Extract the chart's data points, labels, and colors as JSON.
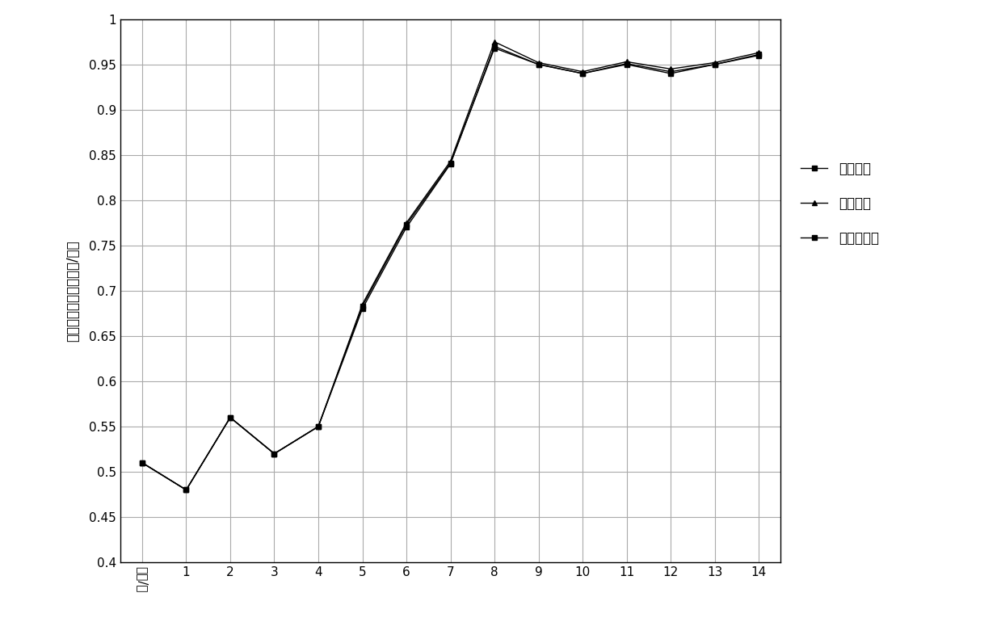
{
  "x_labels": [
    "时间/天",
    "1",
    "2",
    "3",
    "4",
    "5",
    "6",
    "7",
    "8",
    "9",
    "10",
    "11",
    "12",
    "13",
    "14"
  ],
  "x_values": [
    0,
    1,
    2,
    3,
    4,
    5,
    6,
    7,
    8,
    9,
    10,
    11,
    12,
    13,
    14
  ],
  "series": [
    {
      "name": "实施例四",
      "marker": "s",
      "values": [
        0.51,
        0.48,
        0.56,
        0.52,
        0.55,
        0.68,
        0.77,
        0.84,
        0.97,
        0.95,
        0.94,
        0.95,
        0.94,
        0.95,
        0.96
      ]
    },
    {
      "name": "实施例八",
      "marker": "^",
      "values": [
        0.51,
        0.48,
        0.56,
        0.52,
        0.55,
        0.685,
        0.775,
        0.843,
        0.975,
        0.952,
        0.942,
        0.953,
        0.945,
        0.952,
        0.963
      ]
    },
    {
      "name": "实施例十二",
      "marker": "s",
      "values": [
        0.51,
        0.48,
        0.56,
        0.52,
        0.55,
        0.683,
        0.773,
        0.841,
        0.968,
        0.95,
        0.94,
        0.951,
        0.942,
        0.95,
        0.961
      ]
    }
  ],
  "ylim": [
    0.4,
    1.0
  ],
  "yticks": [
    0.4,
    0.45,
    0.5,
    0.55,
    0.6,
    0.65,
    0.7,
    0.75,
    0.8,
    0.85,
    0.9,
    0.95,
    1.0
  ],
  "ylabel": "平均每天排便次数（次/天）",
  "background_color": "#ffffff",
  "grid_color": "#aaaaaa",
  "line_color": "#000000",
  "figsize": [
    12.39,
    7.91
  ],
  "dpi": 100
}
